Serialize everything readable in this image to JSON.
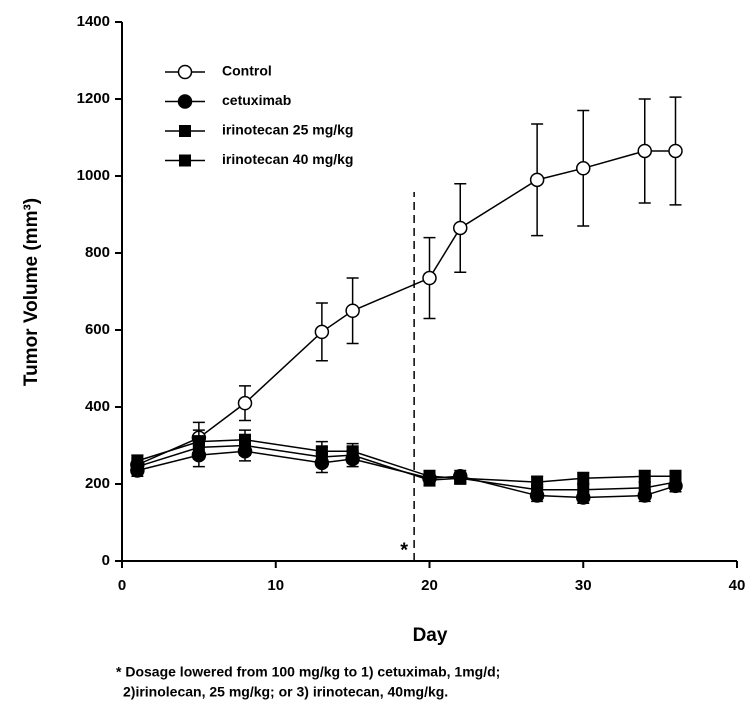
{
  "chart_data": {
    "type": "line",
    "x_label": "Day",
    "y_label": "Tumor Volume (mm³)",
    "xlim": [
      0,
      40
    ],
    "xticks": [
      0,
      10,
      20,
      30,
      40
    ],
    "ylim": [
      0,
      1400
    ],
    "yticks": [
      0,
      200,
      400,
      600,
      800,
      1000,
      1200,
      1400
    ],
    "legend": "upper left",
    "dosage_change_day": 19,
    "dosage_marker": "*",
    "footnote": [
      "* Dosage lowered from 100 mg/kg  to 1) cetuximab, 1mg/d;",
      "2)irinolecan, 25 mg/kg; or 3) irinotecan, 40mg/kg."
    ],
    "series": [
      {
        "name": "Control",
        "color": "#000000",
        "marker": "open-circle",
        "x": [
          1,
          5,
          8,
          13,
          15,
          20,
          22,
          27,
          30,
          34,
          36
        ],
        "values": [
          250,
          320,
          410,
          595,
          650,
          735,
          865,
          990,
          1020,
          1065,
          1065
        ],
        "errors": [
          15,
          40,
          45,
          75,
          85,
          105,
          115,
          145,
          150,
          135,
          140
        ]
      },
      {
        "name": "cetuximab",
        "color": "#000000",
        "marker": "filled-circle",
        "x": [
          1,
          5,
          8,
          13,
          15,
          20,
          22,
          27,
          30,
          34,
          36
        ],
        "values": [
          235,
          275,
          285,
          255,
          265,
          215,
          220,
          170,
          165,
          170,
          195
        ],
        "errors": [
          15,
          30,
          25,
          25,
          20,
          15,
          15,
          15,
          15,
          15,
          15
        ]
      },
      {
        "name": "irinotecan 25 mg/kg",
        "color": "#000000",
        "marker": "filled-square",
        "x": [
          1,
          5,
          8,
          13,
          15,
          20,
          22,
          27,
          30,
          34,
          36
        ],
        "values": [
          245,
          295,
          300,
          270,
          275,
          210,
          215,
          185,
          185,
          190,
          205
        ],
        "errors": [
          15,
          30,
          25,
          25,
          20,
          15,
          15,
          15,
          15,
          15,
          15
        ]
      },
      {
        "name": "irinotecan 40 mg/kg",
        "color": "#000000",
        "marker": "filled-square",
        "x": [
          1,
          5,
          8,
          13,
          15,
          20,
          22,
          27,
          30,
          34,
          36
        ],
        "values": [
          260,
          310,
          315,
          285,
          285,
          220,
          215,
          205,
          215,
          220,
          220
        ],
        "errors": [
          15,
          30,
          25,
          25,
          20,
          15,
          15,
          15,
          15,
          15,
          15
        ]
      }
    ]
  }
}
